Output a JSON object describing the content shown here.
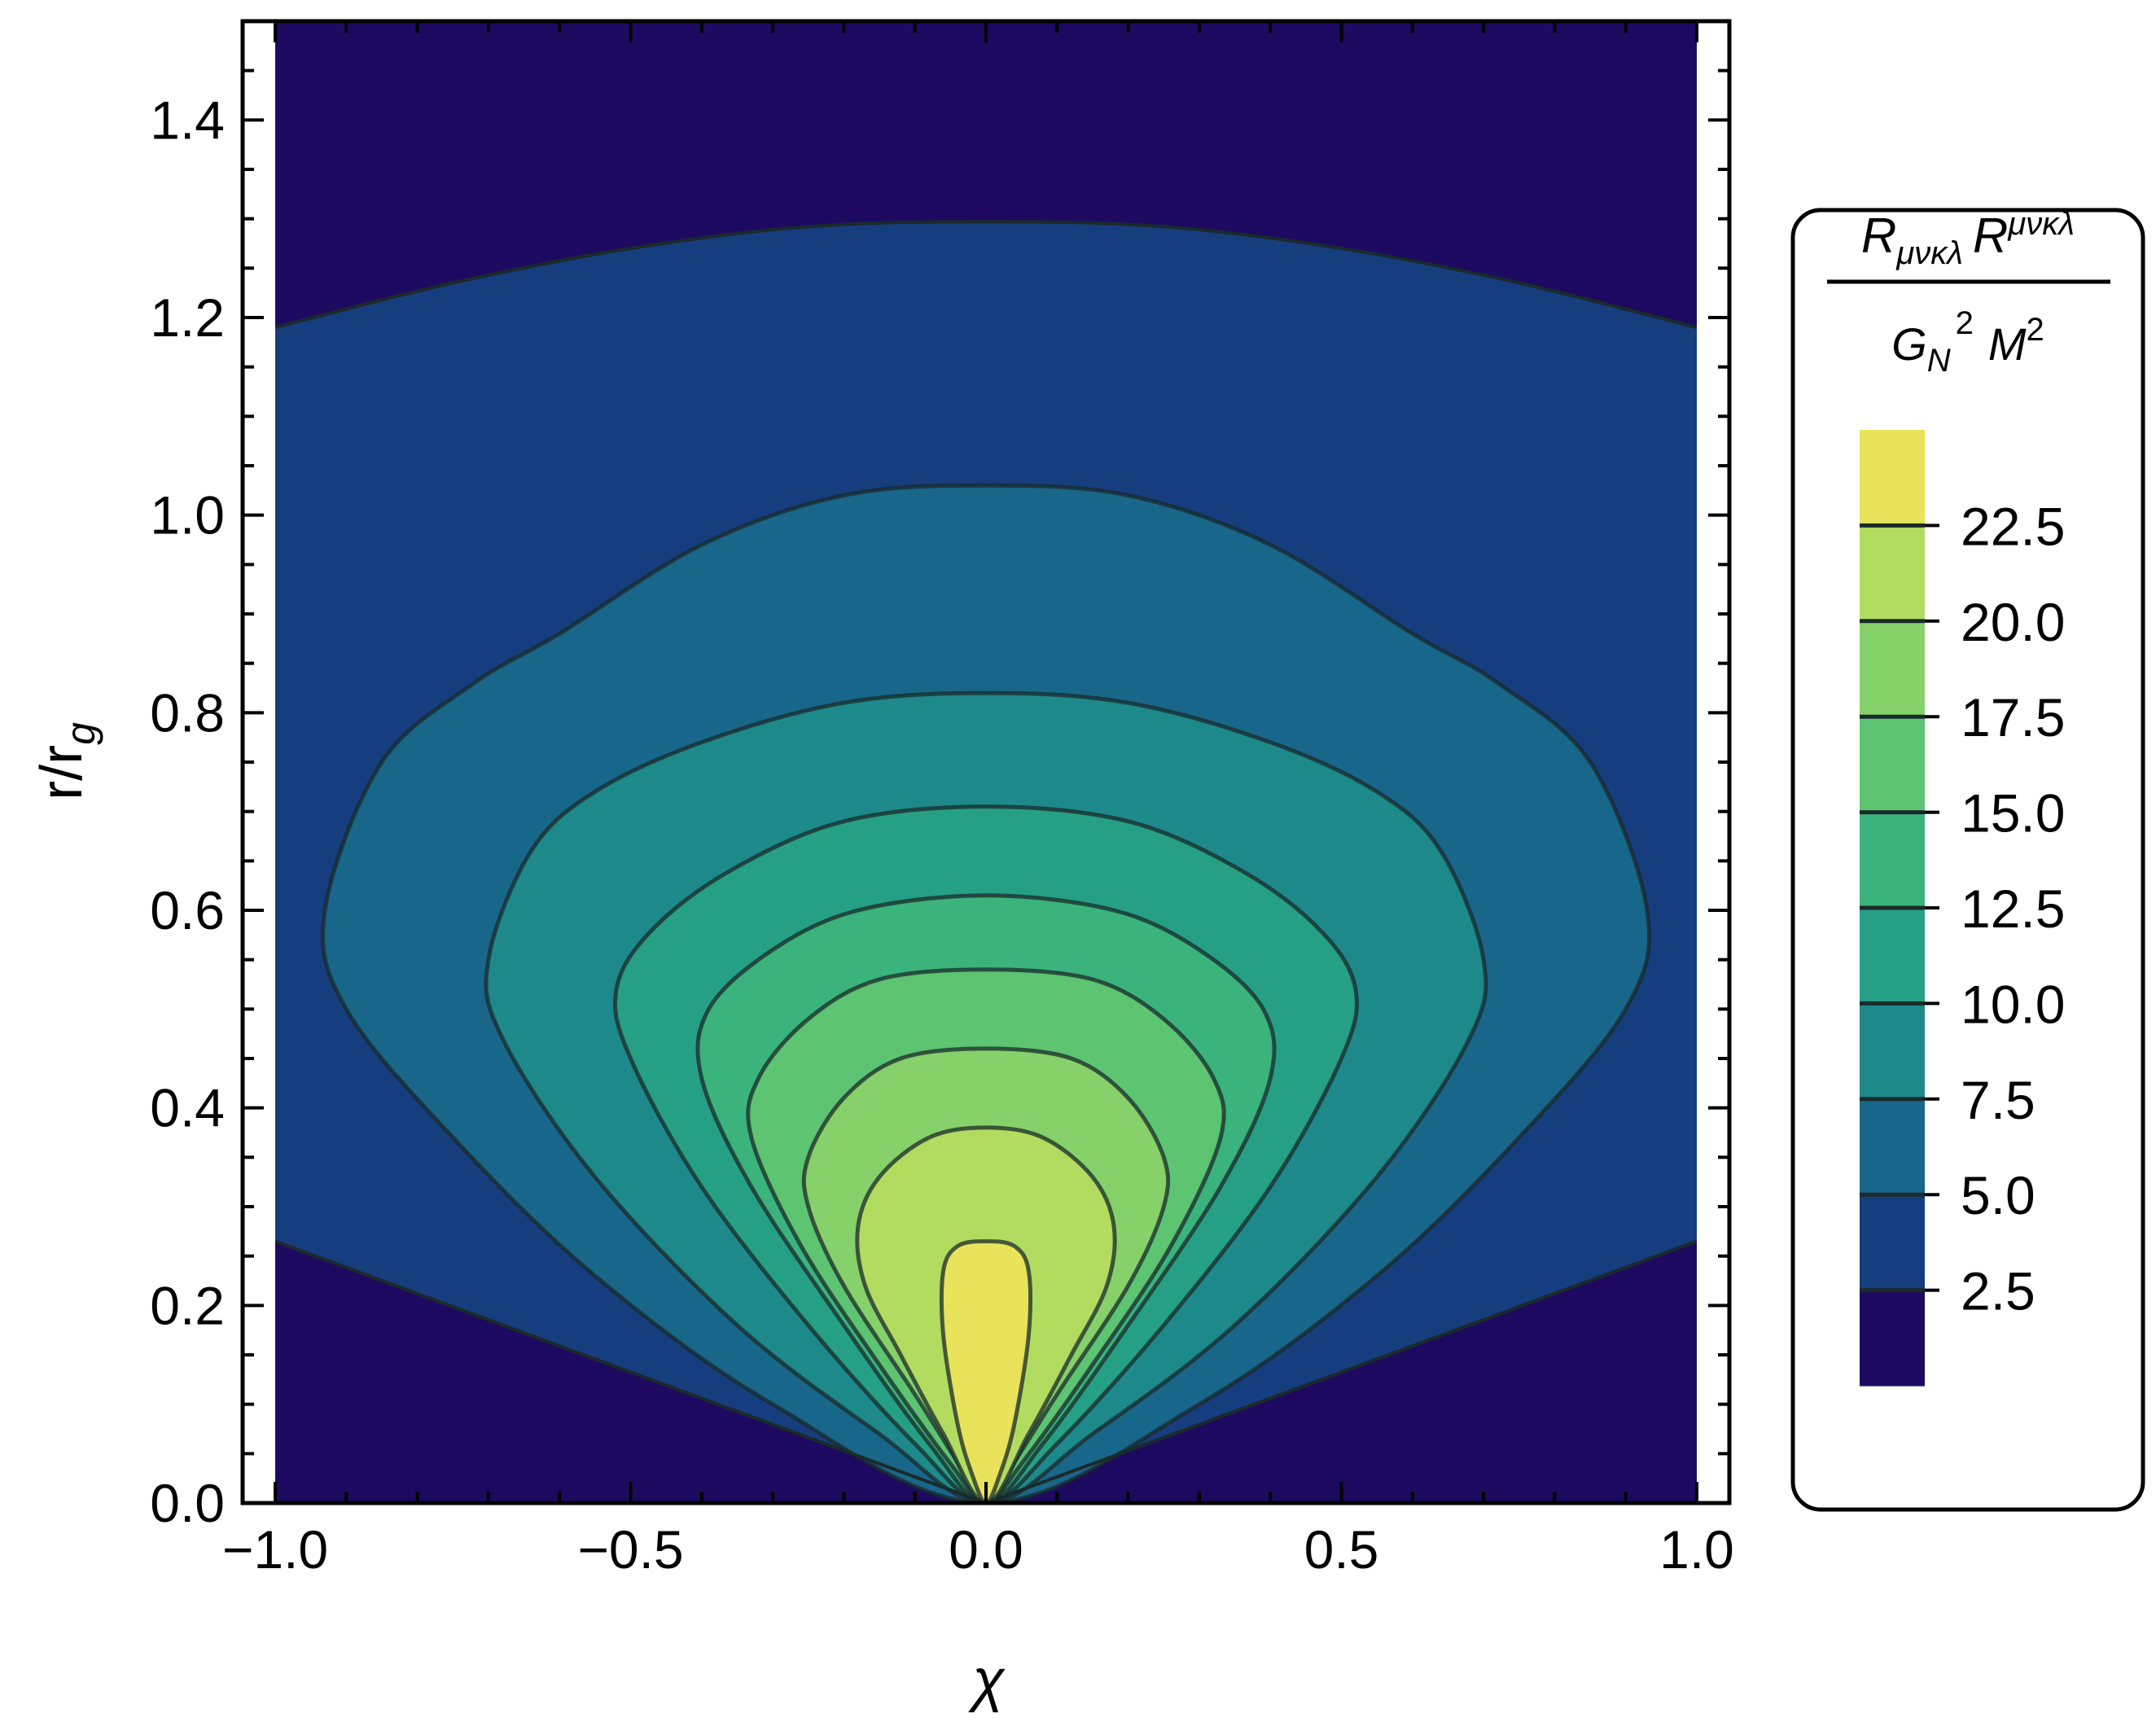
{
  "chart_data": {
    "type": "contour",
    "title": "",
    "xlabel": "χ",
    "ylabel": "r/r",
    "ylabel_subscript": "g",
    "xlim": [
      -1.0,
      1.0
    ],
    "ylim": [
      0.0,
      1.5
    ],
    "x_ticks": [
      "−1.0",
      "−0.5",
      "0.0",
      "0.5",
      "1.0"
    ],
    "y_ticks": [
      "0.0",
      "0.2",
      "0.4",
      "0.6",
      "0.8",
      "1.0",
      "1.2",
      "1.4"
    ],
    "x_tick_values": [
      -1.0,
      -0.5,
      0.0,
      0.5,
      1.0
    ],
    "y_tick_values": [
      0.0,
      0.2,
      0.4,
      0.6,
      0.8,
      1.0,
      1.2,
      1.4
    ],
    "grid": false,
    "legend": {
      "placement": "right",
      "title_numerator": "R",
      "title_numerator_sub": "μνκλ",
      "title_numerator_2": "R",
      "title_numerator_sup": "μνκλ",
      "title_denominator": "G",
      "title_denominator_sub": "N",
      "title_denominator_exp": "2",
      "title_denominator_2": "M",
      "title_denominator_2_exp": "2",
      "levels": [
        "22.5",
        "20.0",
        "17.5",
        "15.0",
        "12.5",
        "10.0",
        "7.5",
        "5.0",
        "2.5"
      ],
      "level_values": [
        22.5,
        20.0,
        17.5,
        15.0,
        12.5,
        10.0,
        7.5,
        5.0,
        2.5
      ],
      "range": [
        0,
        25
      ]
    },
    "band_colors": [
      "#1d0a60",
      "#163d7d",
      "#18668a",
      "#1d898b",
      "#26a085",
      "#3ab37d",
      "#5dc472",
      "#86d16a",
      "#b2dc60",
      "#e8e35a"
    ],
    "contour_color": "#1a2a2a",
    "contours": [
      {
        "level": 2.5,
        "top_curve": [
          [
            -1.0,
            1.19
          ],
          [
            -0.75,
            1.235
          ],
          [
            -0.5,
            1.27
          ],
          [
            -0.25,
            1.292
          ],
          [
            0.0,
            1.297
          ],
          [
            0.25,
            1.292
          ],
          [
            0.5,
            1.27
          ],
          [
            0.75,
            1.235
          ],
          [
            1.0,
            1.19
          ]
        ],
        "bottom_edge": [
          [
            -1.0,
            0.265
          ],
          [
            0.0,
            0.0
          ],
          [
            1.0,
            0.265
          ]
        ]
      },
      {
        "level": 5.0,
        "shape": [
          [
            0.0,
            1.03
          ],
          [
            0.2,
            1.02
          ],
          [
            0.4,
            0.97
          ],
          [
            0.6,
            0.88
          ],
          [
            0.72,
            0.83
          ],
          [
            0.85,
            0.75
          ],
          [
            0.93,
            0.6
          ],
          [
            0.9,
            0.5
          ],
          [
            0.75,
            0.37
          ],
          [
            0.55,
            0.23
          ],
          [
            0.3,
            0.1
          ],
          [
            0.0,
            0.0
          ]
        ]
      },
      {
        "level": 7.5,
        "shape": [
          [
            0.0,
            0.82
          ],
          [
            0.2,
            0.81
          ],
          [
            0.4,
            0.77
          ],
          [
            0.55,
            0.72
          ],
          [
            0.64,
            0.66
          ],
          [
            0.7,
            0.55
          ],
          [
            0.68,
            0.47
          ],
          [
            0.55,
            0.33
          ],
          [
            0.35,
            0.18
          ],
          [
            0.15,
            0.07
          ],
          [
            0.0,
            0.0
          ]
        ]
      },
      {
        "level": 10.0,
        "shape": [
          [
            0.0,
            0.705
          ],
          [
            0.2,
            0.69
          ],
          [
            0.36,
            0.64
          ],
          [
            0.47,
            0.58
          ],
          [
            0.52,
            0.52
          ],
          [
            0.5,
            0.45
          ],
          [
            0.4,
            0.32
          ],
          [
            0.25,
            0.18
          ],
          [
            0.1,
            0.06
          ],
          [
            0.0,
            0.0
          ]
        ]
      },
      {
        "level": 12.5,
        "shape": [
          [
            0.0,
            0.615
          ],
          [
            0.18,
            0.6
          ],
          [
            0.3,
            0.56
          ],
          [
            0.39,
            0.5
          ],
          [
            0.4,
            0.43
          ],
          [
            0.33,
            0.32
          ],
          [
            0.2,
            0.18
          ],
          [
            0.08,
            0.06
          ],
          [
            0.0,
            0.0
          ]
        ]
      },
      {
        "level": 15.0,
        "shape": [
          [
            0.0,
            0.54
          ],
          [
            0.15,
            0.53
          ],
          [
            0.25,
            0.49
          ],
          [
            0.32,
            0.43
          ],
          [
            0.33,
            0.37
          ],
          [
            0.26,
            0.26
          ],
          [
            0.15,
            0.14
          ],
          [
            0.05,
            0.04
          ],
          [
            0.0,
            0.0
          ]
        ]
      },
      {
        "level": 17.5,
        "shape": [
          [
            0.0,
            0.46
          ],
          [
            0.12,
            0.45
          ],
          [
            0.2,
            0.41
          ],
          [
            0.25,
            0.35
          ],
          [
            0.25,
            0.3
          ],
          [
            0.2,
            0.22
          ],
          [
            0.1,
            0.11
          ],
          [
            0.03,
            0.03
          ],
          [
            0.0,
            0.0
          ]
        ]
      },
      {
        "level": 20.0,
        "shape": [
          [
            0.0,
            0.38
          ],
          [
            0.08,
            0.37
          ],
          [
            0.15,
            0.33
          ],
          [
            0.18,
            0.28
          ],
          [
            0.17,
            0.22
          ],
          [
            0.12,
            0.15
          ],
          [
            0.06,
            0.07
          ],
          [
            0.0,
            0.0
          ]
        ]
      },
      {
        "level": 22.5,
        "shape": [
          [
            0.0,
            0.265
          ],
          [
            0.04,
            0.26
          ],
          [
            0.06,
            0.235
          ],
          [
            0.06,
            0.17
          ],
          [
            0.04,
            0.08
          ],
          [
            0.02,
            0.03
          ],
          [
            0.0,
            0.0
          ]
        ]
      }
    ]
  }
}
